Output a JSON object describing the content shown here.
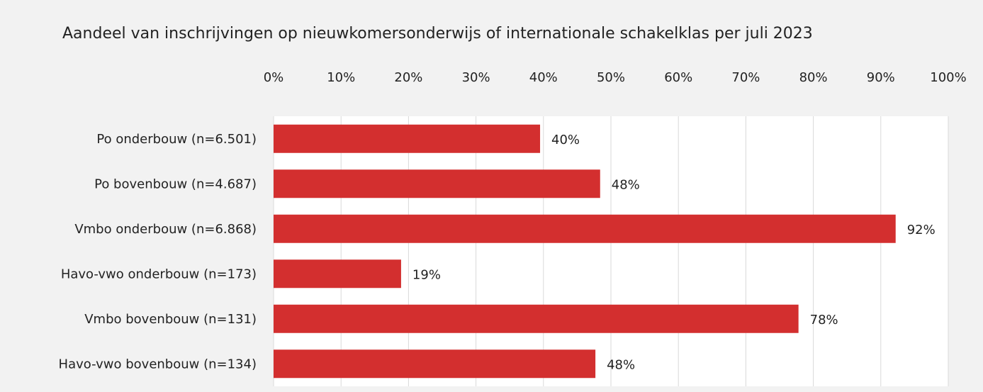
{
  "chart_data": {
    "type": "bar",
    "orientation": "horizontal",
    "title": "Aandeel van inschrijvingen op nieuwkomersonderwijs of internationale schakelklas per juli 2023",
    "categories": [
      "Po onderbouw (n=6.501)",
      "Po bovenbouw (n=4.687)",
      "Vmbo onderbouw (n=6.868)",
      "Havo-vwo onderbouw (n=173)",
      "Vmbo bovenbouw (n=131)",
      "Havo-vwo bovenbouw (n=134)"
    ],
    "values": [
      39.5,
      48.4,
      92.2,
      18.9,
      77.8,
      47.7
    ],
    "value_labels": [
      "40%",
      "48%",
      "92%",
      "19%",
      "78%",
      "48%"
    ],
    "color": "#d32f2f",
    "xlim": [
      0,
      100
    ],
    "xticks": [
      {
        "value": 0,
        "label": "0%"
      },
      {
        "value": 10,
        "label": "10%"
      },
      {
        "value": 20,
        "label": "20%"
      },
      {
        "value": 30,
        "label": "30%"
      },
      {
        "value": 40,
        "label": "40%"
      },
      {
        "value": 50,
        "label": "50%"
      },
      {
        "value": 60,
        "label": "60%"
      },
      {
        "value": 70,
        "label": "70%"
      },
      {
        "value": 80,
        "label": "80%"
      },
      {
        "value": 90,
        "label": "90%"
      },
      {
        "value": 100,
        "label": "100%"
      }
    ],
    "grid": true
  }
}
